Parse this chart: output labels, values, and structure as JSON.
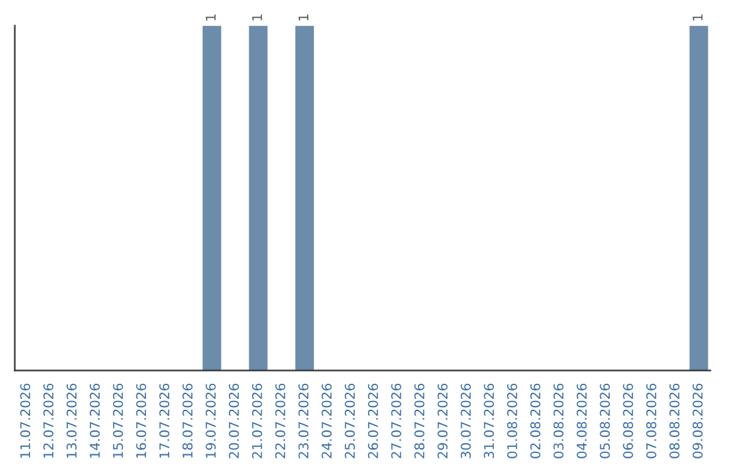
{
  "chart_data": {
    "type": "bar",
    "categories": [
      "11.07.2026",
      "12.07.2026",
      "13.07.2026",
      "14.07.2026",
      "15.07.2026",
      "16.07.2026",
      "17.07.2026",
      "18.07.2026",
      "19.07.2026",
      "20.07.2026",
      "21.07.2026",
      "22.07.2026",
      "23.07.2026",
      "24.07.2026",
      "25.07.2026",
      "26.07.2026",
      "27.07.2026",
      "28.07.2026",
      "29.07.2026",
      "30.07.2026",
      "31.07.2026",
      "01.08.2026",
      "02.08.2026",
      "03.08.2026",
      "04.08.2026",
      "05.08.2026",
      "06.08.2026",
      "07.08.2026",
      "08.08.2026",
      "09.08.2026"
    ],
    "values": [
      0,
      0,
      0,
      0,
      0,
      0,
      0,
      0,
      1,
      0,
      1,
      0,
      1,
      0,
      0,
      0,
      0,
      0,
      0,
      0,
      0,
      0,
      0,
      0,
      0,
      0,
      0,
      0,
      0,
      1
    ],
    "value_labels": [
      null,
      null,
      null,
      null,
      null,
      null,
      null,
      null,
      "1",
      null,
      "1",
      null,
      "1",
      null,
      null,
      null,
      null,
      null,
      null,
      null,
      null,
      null,
      null,
      null,
      null,
      null,
      null,
      null,
      null,
      "1"
    ],
    "color": "#6b8cab",
    "tick_labels": "x",
    "grid": false
  }
}
